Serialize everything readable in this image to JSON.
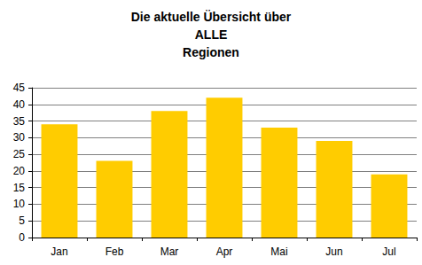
{
  "chart_data": {
    "type": "bar",
    "title": "Die aktuelle Übersicht über\nALLE\nRegionen",
    "categories": [
      "Jan",
      "Feb",
      "Mar",
      "Apr",
      "Mai",
      "Jun",
      "Jul"
    ],
    "values": [
      34,
      23,
      38,
      42,
      33,
      29,
      19
    ],
    "color": "#ffcc00",
    "ylim": [
      0,
      45
    ],
    "yticks": [
      0,
      5,
      10,
      15,
      20,
      25,
      30,
      35,
      40,
      45
    ],
    "grid": true
  }
}
